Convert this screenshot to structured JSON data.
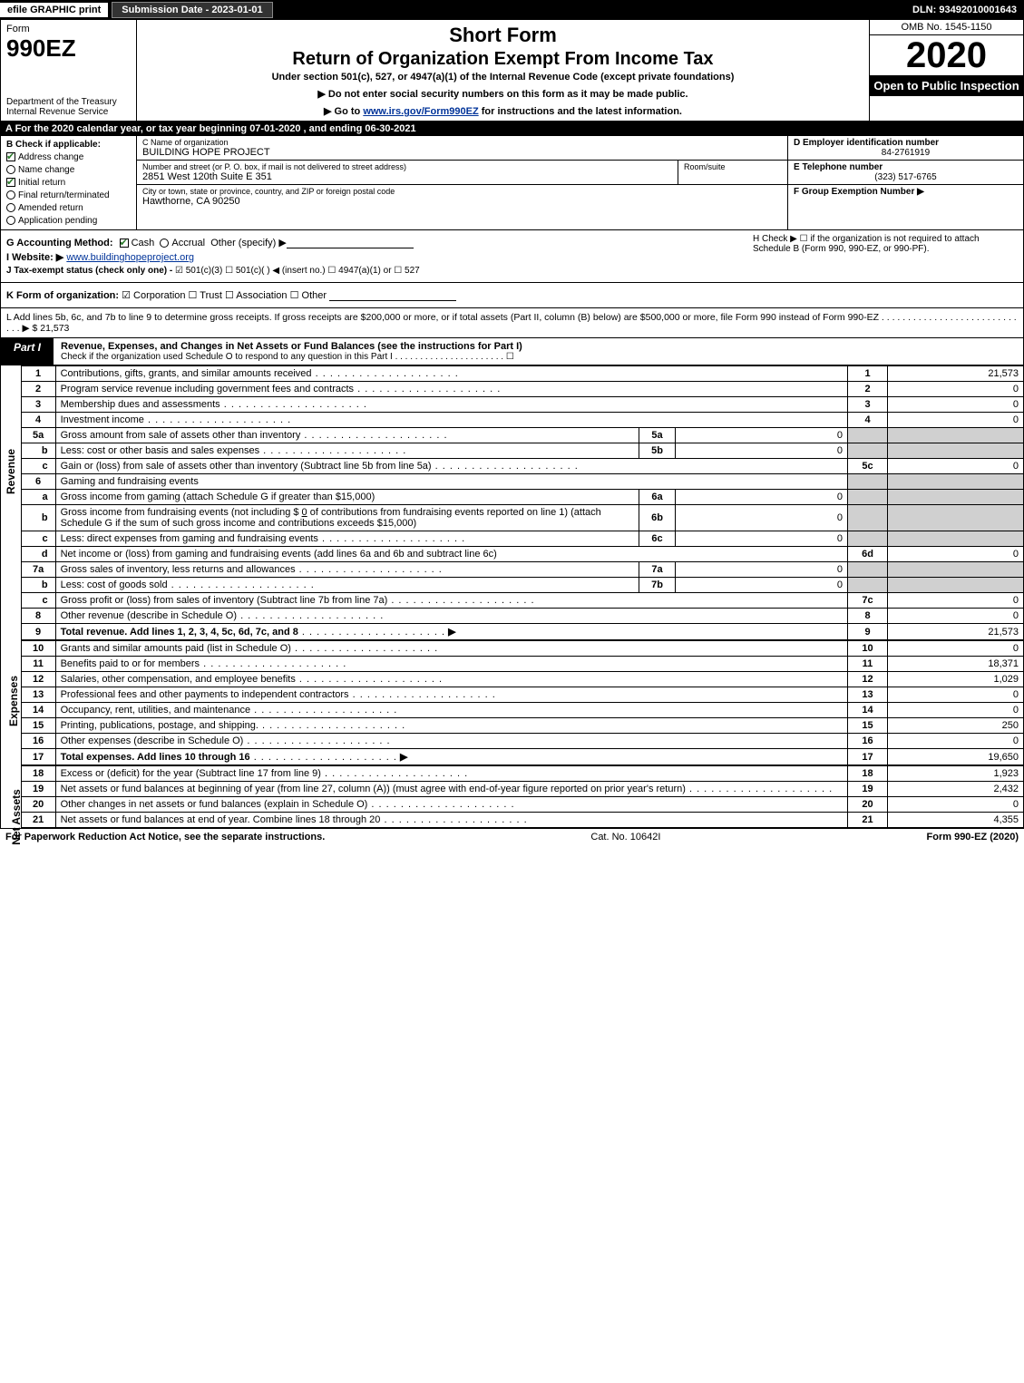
{
  "topbar": {
    "efile": "efile GRAPHIC print",
    "submission": "Submission Date - 2023-01-01",
    "dln": "DLN: 93492010001643"
  },
  "header": {
    "form_label": "Form",
    "form_number": "990EZ",
    "dept": "Department of the Treasury\nInternal Revenue Service",
    "short_form": "Short Form",
    "return_title": "Return of Organization Exempt From Income Tax",
    "under_section": "Under section 501(c), 527, or 4947(a)(1) of the Internal Revenue Code (except private foundations)",
    "no_ssn": "▶ Do not enter social security numbers on this form as it may be made public.",
    "goto_pre": "▶ Go to ",
    "goto_link": "www.irs.gov/Form990EZ",
    "goto_post": " for instructions and the latest information.",
    "omb": "OMB No. 1545-1150",
    "year": "2020",
    "open_public": "Open to Public Inspection"
  },
  "lineA": "A For the 2020 calendar year, or tax year beginning 07-01-2020 , and ending 06-30-2021",
  "boxB": {
    "title": "B  Check if applicable:",
    "opts": [
      {
        "label": "Address change",
        "checked": true
      },
      {
        "label": "Name change",
        "checked": false
      },
      {
        "label": "Initial return",
        "checked": true
      },
      {
        "label": "Final return/terminated",
        "checked": false
      },
      {
        "label": "Amended return",
        "checked": false
      },
      {
        "label": "Application pending",
        "checked": false
      }
    ]
  },
  "boxC": {
    "name_label": "C Name of organization",
    "name": "BUILDING HOPE PROJECT",
    "addr_label": "Number and street (or P. O. box, if mail is not delivered to street address)",
    "addr": "2851 West 120th Suite E 351",
    "room_label": "Room/suite",
    "room": "",
    "city_label": "City or town, state or province, country, and ZIP or foreign postal code",
    "city": "Hawthorne, CA  90250"
  },
  "boxD": {
    "ein_label": "D Employer identification number",
    "ein": "84-2761919",
    "tel_label": "E Telephone number",
    "tel": "(323) 517-6765",
    "group_label": "F Group Exemption Number  ▶",
    "group": ""
  },
  "boxG": {
    "label": "G Accounting Method:",
    "cash": "Cash",
    "accrual": "Accrual",
    "other": "Other (specify) ▶"
  },
  "boxH": {
    "text": "H  Check ▶  ☐  if the organization is not required to attach Schedule B (Form 990, 990-EZ, or 990-PF)."
  },
  "boxI": {
    "label": "I Website: ▶",
    "url": "www.buildinghopeproject.org"
  },
  "boxJ": {
    "label": "J Tax-exempt status (check only one) -",
    "opts": "☑ 501(c)(3)  ☐ 501(c)( )  ◀ (insert no.)  ☐ 4947(a)(1) or  ☐ 527"
  },
  "boxK": {
    "label": "K Form of organization:",
    "opts": "☑ Corporation   ☐ Trust   ☐ Association   ☐ Other"
  },
  "boxL": {
    "text": "L Add lines 5b, 6c, and 7b to line 9 to determine gross receipts. If gross receipts are $200,000 or more, or if total assets (Part II, column (B) below) are $500,000 or more, file Form 990 instead of Form 990-EZ  .  .  .  .  .  .  .  .  .  .  .  .  .  .  .  .  .  .  .  .  .  .  .  .  .  .  .  .  .  ▶ $ 21,573"
  },
  "part1": {
    "tab": "Part I",
    "title": "Revenue, Expenses, and Changes in Net Assets or Fund Balances (see the instructions for Part I)",
    "sub": "Check if the organization used Schedule O to respond to any question in this Part I  .  .  .  .  .  .  .  .  .  .  .  .  .  .  .  .  .  .  .  .  .  .   ☐"
  },
  "sideLabels": {
    "revenue": "Revenue",
    "expenses": "Expenses",
    "netassets": "Net Assets"
  },
  "revenue": {
    "l1": {
      "n": "1",
      "d": "Contributions, gifts, grants, and similar amounts received",
      "r": "1",
      "v": "21,573"
    },
    "l2": {
      "n": "2",
      "d": "Program service revenue including government fees and contracts",
      "r": "2",
      "v": "0"
    },
    "l3": {
      "n": "3",
      "d": "Membership dues and assessments",
      "r": "3",
      "v": "0"
    },
    "l4": {
      "n": "4",
      "d": "Investment income",
      "r": "4",
      "v": "0"
    },
    "l5a": {
      "n": "5a",
      "d": "Gross amount from sale of assets other than inventory",
      "in": "5a",
      "iv": "0"
    },
    "l5b": {
      "n": "b",
      "d": "Less: cost or other basis and sales expenses",
      "in": "5b",
      "iv": "0"
    },
    "l5c": {
      "n": "c",
      "d": "Gain or (loss) from sale of assets other than inventory (Subtract line 5b from line 5a)",
      "r": "5c",
      "v": "0"
    },
    "l6": {
      "n": "6",
      "d": "Gaming and fundraising events"
    },
    "l6a": {
      "n": "a",
      "d": "Gross income from gaming (attach Schedule G if greater than $15,000)",
      "in": "6a",
      "iv": "0"
    },
    "l6b": {
      "n": "b",
      "d": "Gross income from fundraising events (not including $ ",
      "d2": "0",
      "d3": " of contributions from fundraising events reported on line 1) (attach Schedule G if the sum of such gross income and contributions exceeds $15,000)",
      "in": "6b",
      "iv": "0"
    },
    "l6c": {
      "n": "c",
      "d": "Less: direct expenses from gaming and fundraising events",
      "in": "6c",
      "iv": "0"
    },
    "l6d": {
      "n": "d",
      "d": "Net income or (loss) from gaming and fundraising events (add lines 6a and 6b and subtract line 6c)",
      "r": "6d",
      "v": "0"
    },
    "l7a": {
      "n": "7a",
      "d": "Gross sales of inventory, less returns and allowances",
      "in": "7a",
      "iv": "0"
    },
    "l7b": {
      "n": "b",
      "d": "Less: cost of goods sold",
      "in": "7b",
      "iv": "0"
    },
    "l7c": {
      "n": "c",
      "d": "Gross profit or (loss) from sales of inventory (Subtract line 7b from line 7a)",
      "r": "7c",
      "v": "0"
    },
    "l8": {
      "n": "8",
      "d": "Other revenue (describe in Schedule O)",
      "r": "8",
      "v": "0"
    },
    "l9": {
      "n": "9",
      "d": "Total revenue. Add lines 1, 2, 3, 4, 5c, 6d, 7c, and 8",
      "r": "9",
      "v": "21,573",
      "arrow": "▶"
    }
  },
  "expenses": {
    "l10": {
      "n": "10",
      "d": "Grants and similar amounts paid (list in Schedule O)",
      "r": "10",
      "v": "0"
    },
    "l11": {
      "n": "11",
      "d": "Benefits paid to or for members",
      "r": "11",
      "v": "18,371"
    },
    "l12": {
      "n": "12",
      "d": "Salaries, other compensation, and employee benefits",
      "r": "12",
      "v": "1,029"
    },
    "l13": {
      "n": "13",
      "d": "Professional fees and other payments to independent contractors",
      "r": "13",
      "v": "0"
    },
    "l14": {
      "n": "14",
      "d": "Occupancy, rent, utilities, and maintenance",
      "r": "14",
      "v": "0"
    },
    "l15": {
      "n": "15",
      "d": "Printing, publications, postage, and shipping.",
      "r": "15",
      "v": "250"
    },
    "l16": {
      "n": "16",
      "d": "Other expenses (describe in Schedule O)",
      "r": "16",
      "v": "0"
    },
    "l17": {
      "n": "17",
      "d": "Total expenses. Add lines 10 through 16",
      "r": "17",
      "v": "19,650",
      "arrow": "▶"
    }
  },
  "netassets": {
    "l18": {
      "n": "18",
      "d": "Excess or (deficit) for the year (Subtract line 17 from line 9)",
      "r": "18",
      "v": "1,923"
    },
    "l19": {
      "n": "19",
      "d": "Net assets or fund balances at beginning of year (from line 27, column (A)) (must agree with end-of-year figure reported on prior year's return)",
      "r": "19",
      "v": "2,432"
    },
    "l20": {
      "n": "20",
      "d": "Other changes in net assets or fund balances (explain in Schedule O)",
      "r": "20",
      "v": "0"
    },
    "l21": {
      "n": "21",
      "d": "Net assets or fund balances at end of year. Combine lines 18 through 20",
      "r": "21",
      "v": "4,355"
    }
  },
  "footer": {
    "left": "For Paperwork Reduction Act Notice, see the separate instructions.",
    "mid": "Cat. No. 10642I",
    "right": "Form 990-EZ (2020)"
  }
}
